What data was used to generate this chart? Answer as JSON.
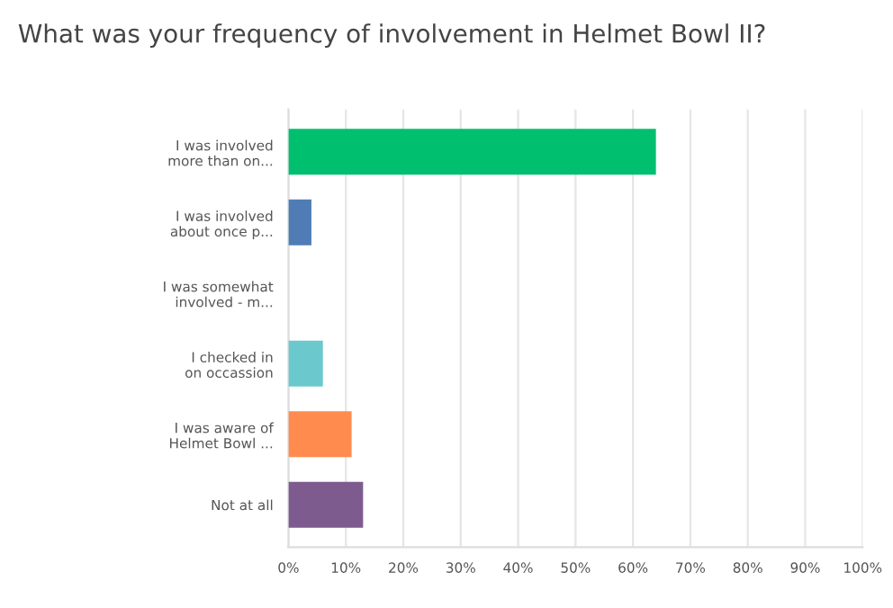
{
  "chart_data": {
    "type": "bar",
    "orientation": "horizontal",
    "title": "What was your frequency of involvement in Helmet Bowl II?",
    "categories": [
      "I was involved\nmore than on...",
      "I was involved\nabout once p...",
      "I was somewhat\ninvolved - m...",
      "I checked in\non occassion",
      "I was aware of\nHelmet Bowl ...",
      "Not at all"
    ],
    "values": [
      64,
      4,
      0,
      6,
      11,
      13
    ],
    "colors": [
      "#00bf6f",
      "#507cb6",
      "#f05b24",
      "#6bc8cd",
      "#ff8b4f",
      "#7d5b8f"
    ],
    "xlim": [
      0,
      100
    ],
    "xticks": [
      {
        "value": 0,
        "label": "0%"
      },
      {
        "value": 10,
        "label": "10%"
      },
      {
        "value": 20,
        "label": "20%"
      },
      {
        "value": 30,
        "label": "30%"
      },
      {
        "value": 40,
        "label": "40%"
      },
      {
        "value": 50,
        "label": "50%"
      },
      {
        "value": 60,
        "label": "60%"
      },
      {
        "value": 70,
        "label": "70%"
      },
      {
        "value": 80,
        "label": "80%"
      },
      {
        "value": 90,
        "label": "90%"
      },
      {
        "value": 100,
        "label": "100%"
      }
    ],
    "grid": "x",
    "legend": false
  }
}
